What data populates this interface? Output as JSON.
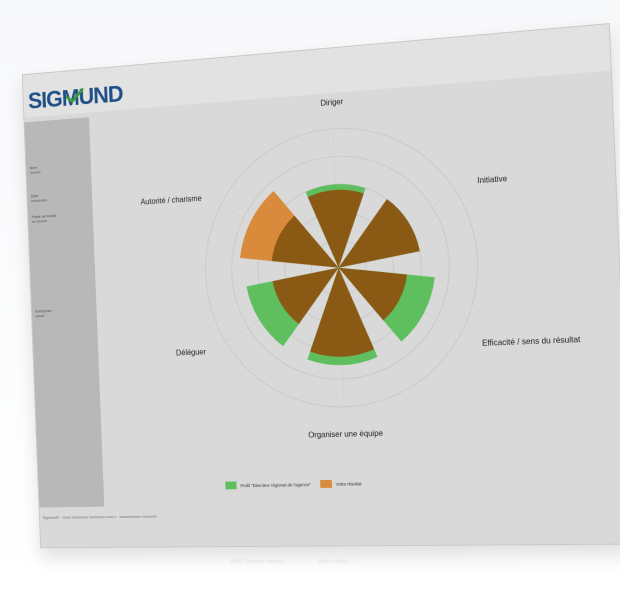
{
  "brand": {
    "logo_text": "SIGMUND",
    "colors": {
      "primary": "#1f4f87",
      "accent": "#3d9a3d"
    }
  },
  "sidebar": {
    "items": [
      {
        "label": "Nom",
        "value": "xxxxxx"
      },
      {
        "label": "Date",
        "value": "xx/xx/xxxx"
      },
      {
        "label": "Poste de travail",
        "value": "xx xxxxxx"
      },
      {
        "label": "Entreprise",
        "value": "xxxxx"
      }
    ]
  },
  "footer": {
    "text": "Sigmund® · xxxxx xxxxxxxxx xxxxxxxxx xxxx x · xxxxxxxxxxxx xxxxxxxx"
  },
  "chart_data": {
    "type": "polar-area",
    "title": "",
    "categories": [
      "Diriger",
      "Initiative",
      "Efficacité / sens du résultat",
      "Organiser une équipe",
      "Déléguer",
      "Autorité / charisme"
    ],
    "series": [
      {
        "name": "Profil \"Directeur régional de l'agence\"",
        "color": "#5fbf5f",
        "values": [
          3,
          3,
          3.5,
          3.5,
          3.5,
          2.5
        ]
      },
      {
        "name": "Votre résultat",
        "color": "#d98a3a",
        "values": [
          2.8,
          3,
          2.5,
          3.2,
          2.5,
          3.7
        ]
      }
    ],
    "overlap_color": "#8a5a14",
    "rlim": [
      0,
      5
    ],
    "grid": true,
    "legend_position": "bottom"
  },
  "reflection": {
    "labels": [
      "Profil \"Directeur régional",
      "Votre résultat"
    ]
  }
}
